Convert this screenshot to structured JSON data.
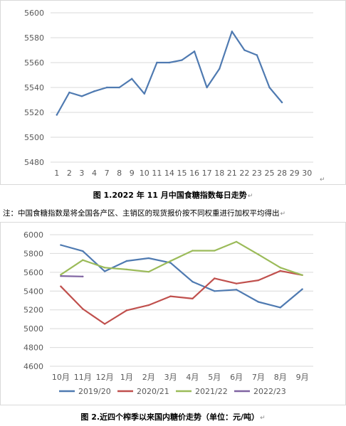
{
  "chart_data": [
    {
      "type": "line",
      "categories": [
        "1",
        "2",
        "3",
        "4",
        "7",
        "8",
        "9",
        "10",
        "11",
        "14",
        "15",
        "16",
        "17",
        "18",
        "21",
        "22",
        "23",
        "25",
        "28",
        "29",
        "30"
      ],
      "series": [
        {
          "values": [
            5518,
            5536,
            5533,
            5537,
            5540,
            5540,
            5547,
            5535,
            5560,
            5560,
            5562,
            5569,
            5540,
            5555,
            5585,
            5570,
            5566,
            5540,
            5528,
            null,
            null
          ],
          "color": "#4f7ab1"
        }
      ],
      "ylim": [
        5480,
        5600
      ],
      "yticks": [
        5480,
        5500,
        5520,
        5540,
        5560,
        5580,
        5600
      ],
      "grid": true,
      "legend": "none"
    },
    {
      "type": "line",
      "categories": [
        "10月",
        "11月",
        "12月",
        "1月",
        "2月",
        "3月",
        "4月",
        "5月",
        "6月",
        "7月",
        "8月",
        "9月"
      ],
      "series": [
        {
          "name": "2019/20",
          "color": "#4f7ab1",
          "values": [
            5890,
            5825,
            5610,
            5720,
            5750,
            5700,
            5500,
            5400,
            5415,
            5285,
            5225,
            5420
          ]
        },
        {
          "name": "2020/21",
          "color": "#c0504d",
          "values": [
            5450,
            5210,
            5050,
            5195,
            5250,
            5345,
            5320,
            5535,
            5480,
            5515,
            5615,
            5570
          ]
        },
        {
          "name": "2021/22",
          "color": "#9bbb59",
          "values": [
            5575,
            5730,
            5650,
            5630,
            5605,
            5720,
            5830,
            5830,
            5925,
            5790,
            5650,
            5570
          ]
        },
        {
          "name": "2022/23",
          "color": "#8064a2",
          "values": [
            5560,
            5555,
            null,
            null,
            null,
            null,
            null,
            null,
            null,
            null,
            null,
            null
          ]
        }
      ],
      "ylim": [
        4600,
        6000
      ],
      "yticks": [
        4600,
        4800,
        5000,
        5200,
        5400,
        5600,
        5800,
        6000
      ],
      "grid": true,
      "legend": "bottom"
    }
  ],
  "captions": {
    "fig1": "图 1.2022 年 11 月中国食糖指数每日走势",
    "note": "注：中国食糖指数是将全国各产区、主销区的现货报价按不同权重进行加权平均得出",
    "fig2": "图 2.近四个榨季以来国内糖价走势（单位：元/吨）",
    "para_mark": "↵"
  }
}
